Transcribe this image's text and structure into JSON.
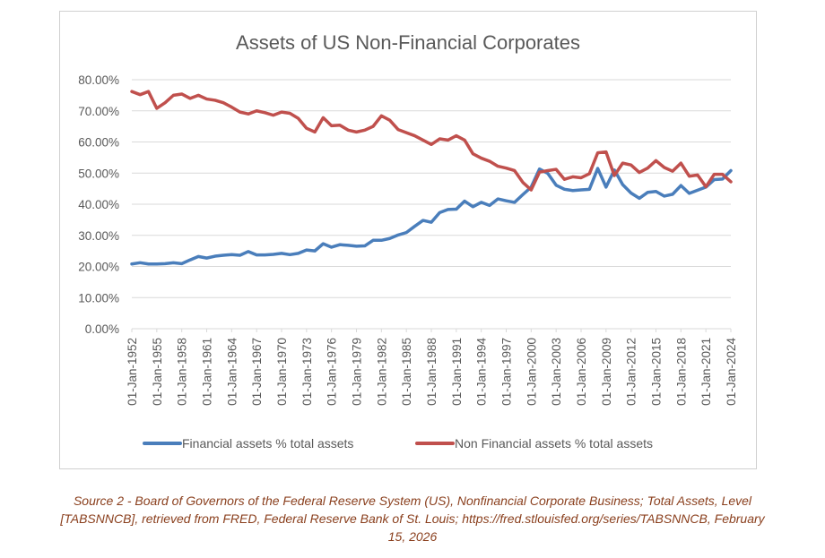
{
  "chart_data": {
    "type": "line",
    "title": "Assets of US Non-Financial Corporates",
    "ylim": [
      0,
      80
    ],
    "yticks": [
      "0.00%",
      "10.00%",
      "20.00%",
      "30.00%",
      "40.00%",
      "50.00%",
      "60.00%",
      "70.00%",
      "80.00%"
    ],
    "x_tick_labels": [
      "01-Jan-1952",
      "01-Jan-1955",
      "01-Jan-1958",
      "01-Jan-1961",
      "01-Jan-1964",
      "01-Jan-1967",
      "01-Jan-1970",
      "01-Jan-1973",
      "01-Jan-1976",
      "01-Jan-1979",
      "01-Jan-1982",
      "01-Jan-1985",
      "01-Jan-1988",
      "01-Jan-1991",
      "01-Jan-1994",
      "01-Jan-1997",
      "01-Jan-2000",
      "01-Jan-2003",
      "01-Jan-2006",
      "01-Jan-2009",
      "01-Jan-2012",
      "01-Jan-2015",
      "01-Jan-2018",
      "01-Jan-2021",
      "01-Jan-2024"
    ],
    "x_start_year": 1952,
    "x_end_year": 2024,
    "legend_position": "bottom",
    "series": [
      {
        "name": "Financial assets % total assets",
        "color": "#4a7ebb",
        "values": [
          20.8,
          21.2,
          20.8,
          20.8,
          20.9,
          21.2,
          20.9,
          22.1,
          23.2,
          22.7,
          23.3,
          23.6,
          23.8,
          23.6,
          24.8,
          23.7,
          23.7,
          23.9,
          24.2,
          23.8,
          24.2,
          25.3,
          25.0,
          27.3,
          26.2,
          27.0,
          26.8,
          26.5,
          26.6,
          28.4,
          28.4,
          29.0,
          30.1,
          30.9,
          32.9,
          34.8,
          34.2,
          37.3,
          38.3,
          38.4,
          41.0,
          39.2,
          40.6,
          39.6,
          41.7,
          41.1,
          40.6,
          43.1,
          45.5,
          51.3,
          49.9,
          46.1,
          44.8,
          44.4,
          44.6,
          44.8,
          51.5,
          45.5,
          51.0,
          46.3,
          43.6,
          41.9,
          43.8,
          44.1,
          42.6,
          43.2,
          46.0,
          43.5,
          44.5,
          45.5,
          47.9,
          48.1,
          50.8
        ]
      },
      {
        "name": "Non Financial assets % total assets",
        "color": "#c0504d",
        "values": [
          76.2,
          75.2,
          76.2,
          70.8,
          72.6,
          75.0,
          75.4,
          74.0,
          75.0,
          73.8,
          73.4,
          72.6,
          71.2,
          69.6,
          69.0,
          70.0,
          69.4,
          68.6,
          69.6,
          69.2,
          67.6,
          64.4,
          63.2,
          67.8,
          65.2,
          65.4,
          63.8,
          63.2,
          63.8,
          65.0,
          68.4,
          67.0,
          64.0,
          63.0,
          62.0,
          60.6,
          59.2,
          61.0,
          60.6,
          62.0,
          60.6,
          56.2,
          54.8,
          53.8,
          52.2,
          51.6,
          50.8,
          47.0,
          44.6,
          50.3,
          50.8,
          51.2,
          48.0,
          48.8,
          48.5,
          49.8,
          56.5,
          56.8,
          49.2,
          53.2,
          52.6,
          50.2,
          51.6,
          54.0,
          51.8,
          50.6,
          53.2,
          49.0,
          49.4,
          45.6,
          49.6,
          49.6,
          47.2
        ]
      }
    ]
  },
  "caption": {
    "line1": "Source 2 - Board of Governors of the Federal Reserve System (US), Nonfinancial Corporate Business; Total Assets, Level",
    "line2": "[TABSNNCB], retrieved from FRED, Federal Reserve Bank of St. Louis; https://fred.stlouisfed.org/series/TABSNNCB, February",
    "line3": "15, 2026"
  }
}
